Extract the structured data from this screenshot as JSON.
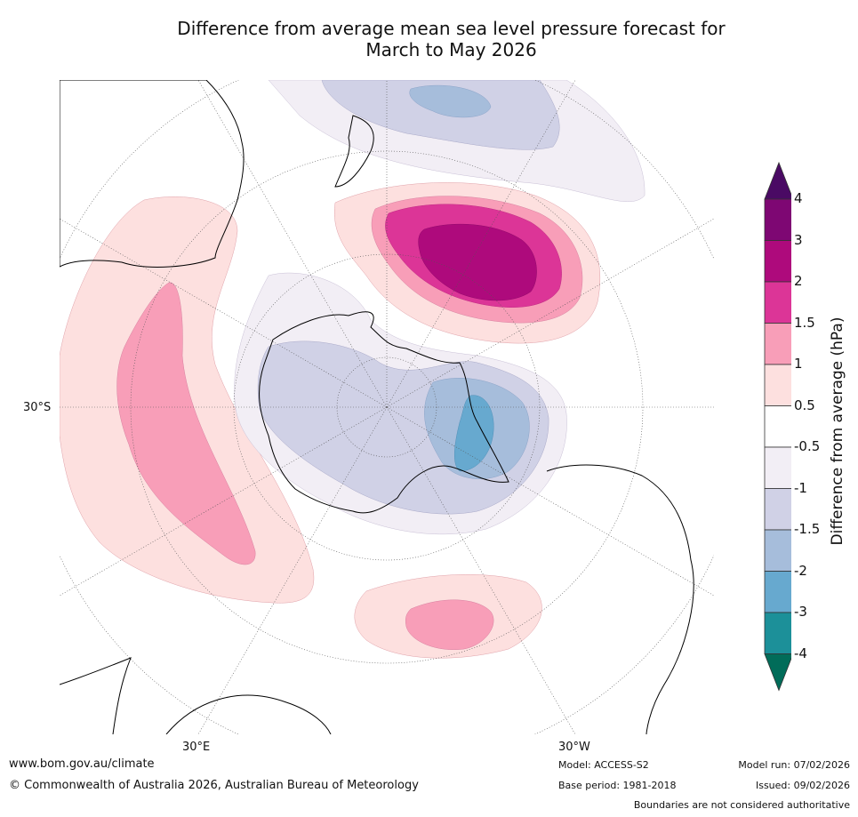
{
  "title": {
    "line1": "Difference from average mean sea level pressure forecast for",
    "line2": "March to May 2026"
  },
  "map_labels": {
    "lat_30s": "30°S",
    "lon_30e": "30°E",
    "lon_30w": "30°W"
  },
  "colorbar": {
    "title": "Difference from average (hPa)",
    "tick_labels": [
      "4",
      "3",
      "2",
      "1.5",
      "1",
      "0.5",
      "-0.5",
      "-1",
      "-1.5",
      "-2",
      "-3",
      "-4"
    ],
    "bins": [
      {
        "label": "> 4",
        "color": "#4a0a64"
      },
      {
        "label": "3 to 4",
        "color": "#7e0773"
      },
      {
        "label": "2 to 3",
        "color": "#ae0a7c"
      },
      {
        "label": "1.5 to 2",
        "color": "#dc3597"
      },
      {
        "label": "1 to 1.5",
        "color": "#f89eb8"
      },
      {
        "label": "0.5 to 1",
        "color": "#fde0df"
      },
      {
        "label": "-0.5 to 0.5",
        "color": "#ffffff"
      },
      {
        "label": "-1 to -0.5",
        "color": "#f2eef5"
      },
      {
        "label": "-1.5 to -1",
        "color": "#d0d1e6"
      },
      {
        "label": "-2 to -1.5",
        "color": "#a6bddb"
      },
      {
        "label": "-3 to -2",
        "color": "#67a9cf"
      },
      {
        "label": "-4 to -3",
        "color": "#1c9099"
      },
      {
        "label": "< -4",
        "color": "#016c59"
      }
    ]
  },
  "footer": {
    "website": "www.bom.gov.au/climate",
    "copyright": "© Commonwealth of Australia 2026, Australian Bureau of Meteorology",
    "model": "Model: ACCESS-S2",
    "base_period": "Base period: 1981-2018",
    "model_run": "Model run: 07/02/2026",
    "issued": "Issued: 09/02/2026",
    "disclaimer": "Boundaries are not considered authoritative"
  }
}
